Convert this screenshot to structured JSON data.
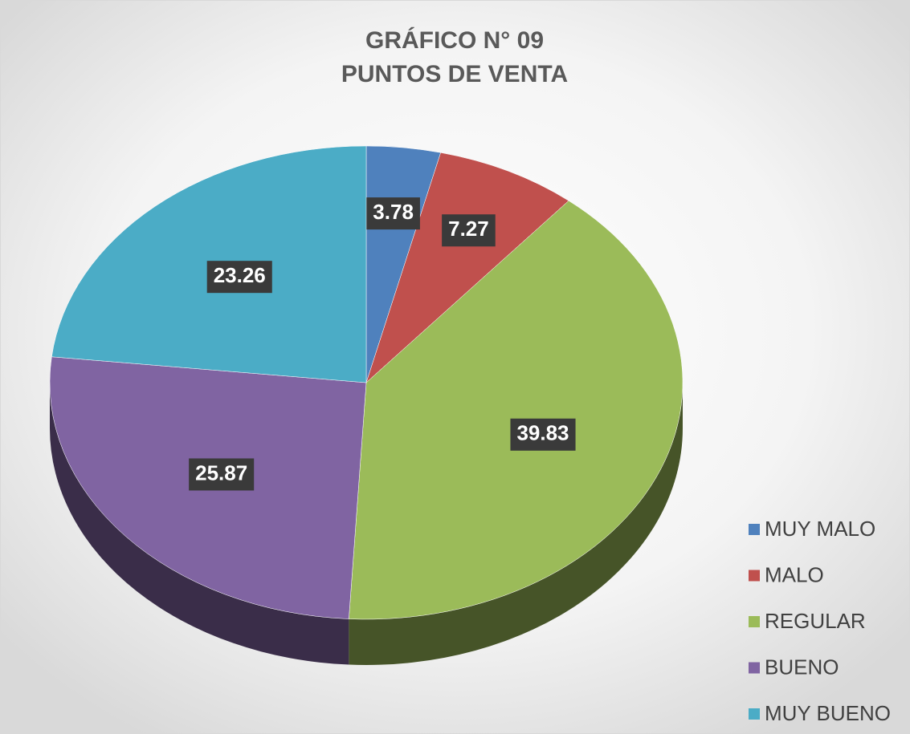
{
  "chart_data": {
    "type": "pie",
    "title": "GRÁFICO N° 09",
    "subtitle": "PUNTOS DE VENTA",
    "categories": [
      "MUY MALO",
      "MALO",
      "REGULAR",
      "BUENO",
      "MUY BUENO"
    ],
    "values": [
      3.78,
      7.27,
      39.83,
      25.87,
      23.26
    ],
    "colors": [
      "#4f81bd",
      "#c0504d",
      "#9bbb59",
      "#8064a2",
      "#4bacc6"
    ],
    "legend": "right"
  }
}
